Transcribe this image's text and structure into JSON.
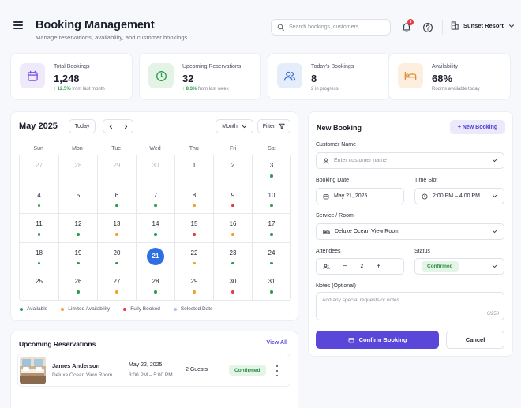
{
  "header": {
    "title": "Booking Management",
    "subtitle": "Manage reservations, availability, and customer bookings",
    "search_placeholder": "Search bookings, customers...",
    "notification_count": "5",
    "property": "Sunset Resort"
  },
  "stats": [
    {
      "label": "Total Bookings",
      "value": "1,248",
      "trend": "12.5%",
      "note": "from last month",
      "icon": "calendar-icon",
      "color": "#7c4ddf",
      "bg": "#efe9fc"
    },
    {
      "label": "Upcoming Reservations",
      "value": "32",
      "trend": "8.3%",
      "note": "from last week",
      "icon": "clock-icon",
      "color": "#2e9b4f",
      "bg": "#e3f4e7"
    },
    {
      "label": "Today's Bookings",
      "value": "8",
      "trend": "",
      "note": "2 in progress",
      "icon": "users-icon",
      "color": "#3a6fd8",
      "bg": "#e5edfb"
    },
    {
      "label": "Availability",
      "value": "68%",
      "trend": "",
      "note": "Rooms available today",
      "icon": "bed-icon",
      "color": "#e08a2c",
      "bg": "#fcefe0"
    }
  ],
  "calendar": {
    "month_label": "May 2025",
    "today_label": "Today",
    "view_label": "Month",
    "filter_label": "Filter",
    "weekdays": [
      "Sun",
      "Mon",
      "Tue",
      "Wed",
      "Thu",
      "Fri",
      "Sat"
    ],
    "weeks": [
      [
        {
          "d": "27",
          "m": true
        },
        {
          "d": "28",
          "m": true
        },
        {
          "d": "29",
          "m": true
        },
        {
          "d": "30",
          "m": true
        },
        {
          "d": "1"
        },
        {
          "d": "2"
        },
        {
          "d": "3",
          "s": "available"
        }
      ],
      [
        {
          "d": "4",
          "s": "available"
        },
        {
          "d": "5"
        },
        {
          "d": "6",
          "s": "available"
        },
        {
          "d": "7",
          "s": "available"
        },
        {
          "d": "8",
          "s": "limited"
        },
        {
          "d": "9",
          "s": "booked"
        },
        {
          "d": "10",
          "s": "available"
        }
      ],
      [
        {
          "d": "11",
          "s": "available"
        },
        {
          "d": "12",
          "s": "available"
        },
        {
          "d": "13",
          "s": "limited"
        },
        {
          "d": "14",
          "s": "available"
        },
        {
          "d": "15",
          "s": "booked"
        },
        {
          "d": "16",
          "s": "limited"
        },
        {
          "d": "17",
          "s": "available"
        }
      ],
      [
        {
          "d": "18",
          "s": "available"
        },
        {
          "d": "19",
          "s": "available"
        },
        {
          "d": "20",
          "s": "available"
        },
        {
          "d": "21",
          "sel": true
        },
        {
          "d": "22",
          "s": "limited"
        },
        {
          "d": "23",
          "s": "available"
        },
        {
          "d": "24",
          "s": "available"
        }
      ],
      [
        {
          "d": "25"
        },
        {
          "d": "26",
          "s": "available"
        },
        {
          "d": "27",
          "s": "limited"
        },
        {
          "d": "28",
          "s": "available"
        },
        {
          "d": "29",
          "s": "limited"
        },
        {
          "d": "30",
          "s": "booked"
        },
        {
          "d": "31",
          "s": "available"
        }
      ]
    ],
    "legend": [
      {
        "key": "available",
        "label": "Available",
        "color": "#2e9b4f"
      },
      {
        "key": "limited",
        "label": "Limited Availability",
        "color": "#f0a029"
      },
      {
        "key": "booked",
        "label": "Fully Booked",
        "color": "#e53a40"
      },
      {
        "key": "selected",
        "label": "Selected Date",
        "color": "#a9c4f2"
      }
    ]
  },
  "upcoming": {
    "title": "Upcoming Reservations",
    "view_all": "View All",
    "items": [
      {
        "name": "James Anderson",
        "room": "Deluxe Ocean View Room",
        "date": "May 22, 2025",
        "time": "3:00 PM – 5:00 PM",
        "guests": "2 Guests",
        "status": "Confirmed"
      }
    ]
  },
  "new_booking": {
    "title": "New Booking",
    "add_label": "+ New Booking",
    "customer_label": "Customer Name",
    "customer_placeholder": "Enter customer name",
    "date_label": "Booking Date",
    "date_value": "May 21, 2025",
    "time_label": "Time Slot",
    "time_value": "2:00 PM – 4:00 PM",
    "service_label": "Service / Room",
    "service_value": "Deluxe Ocean View Room",
    "attendees_label": "Attendees",
    "attendees_value": "2",
    "status_label": "Status",
    "status_value": "Confirmed",
    "notes_label": "Notes (Optional)",
    "notes_placeholder": "Add any special requests or notes...",
    "notes_counter": "0/250",
    "confirm_label": "Confirm Booking",
    "cancel_label": "Cancel"
  }
}
